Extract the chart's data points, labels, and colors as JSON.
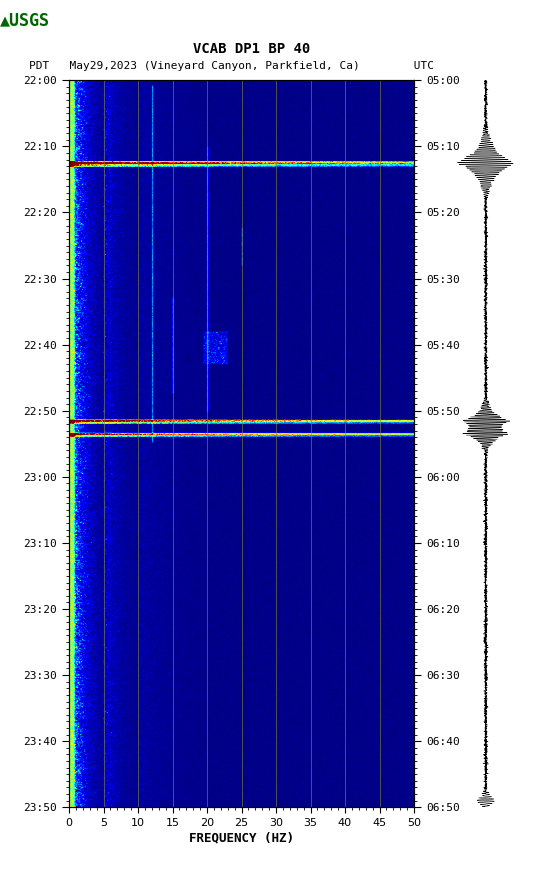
{
  "title_line1": "VCAB DP1 BP 40",
  "title_line2": "PDT   May29,2023 (Vineyard Canyon, Parkfield, Ca)        UTC",
  "xlabel": "FREQUENCY (HZ)",
  "freq_min": 0,
  "freq_max": 50,
  "freq_ticks": [
    0,
    5,
    10,
    15,
    20,
    25,
    30,
    35,
    40,
    45,
    50
  ],
  "time_minutes": 110,
  "left_time_labels": [
    "22:00",
    "22:10",
    "22:20",
    "22:30",
    "22:40",
    "22:50",
    "23:00",
    "23:10",
    "23:20",
    "23:30",
    "23:40",
    "23:50"
  ],
  "right_time_labels": [
    "05:00",
    "05:10",
    "05:20",
    "05:30",
    "05:40",
    "05:50",
    "06:00",
    "06:10",
    "06:20",
    "06:30",
    "06:40",
    "06:50"
  ],
  "bg_color": "#ffffff",
  "colormap": "jet",
  "grid_color": "#808040",
  "vertical_line_freqs": [
    5,
    10,
    15,
    20,
    25,
    30,
    35,
    40,
    45
  ],
  "eq1_minute": 12.5,
  "eq2_minute": 51.5,
  "eq3_minute": 53.5,
  "n_time": 1100,
  "n_freq": 500
}
